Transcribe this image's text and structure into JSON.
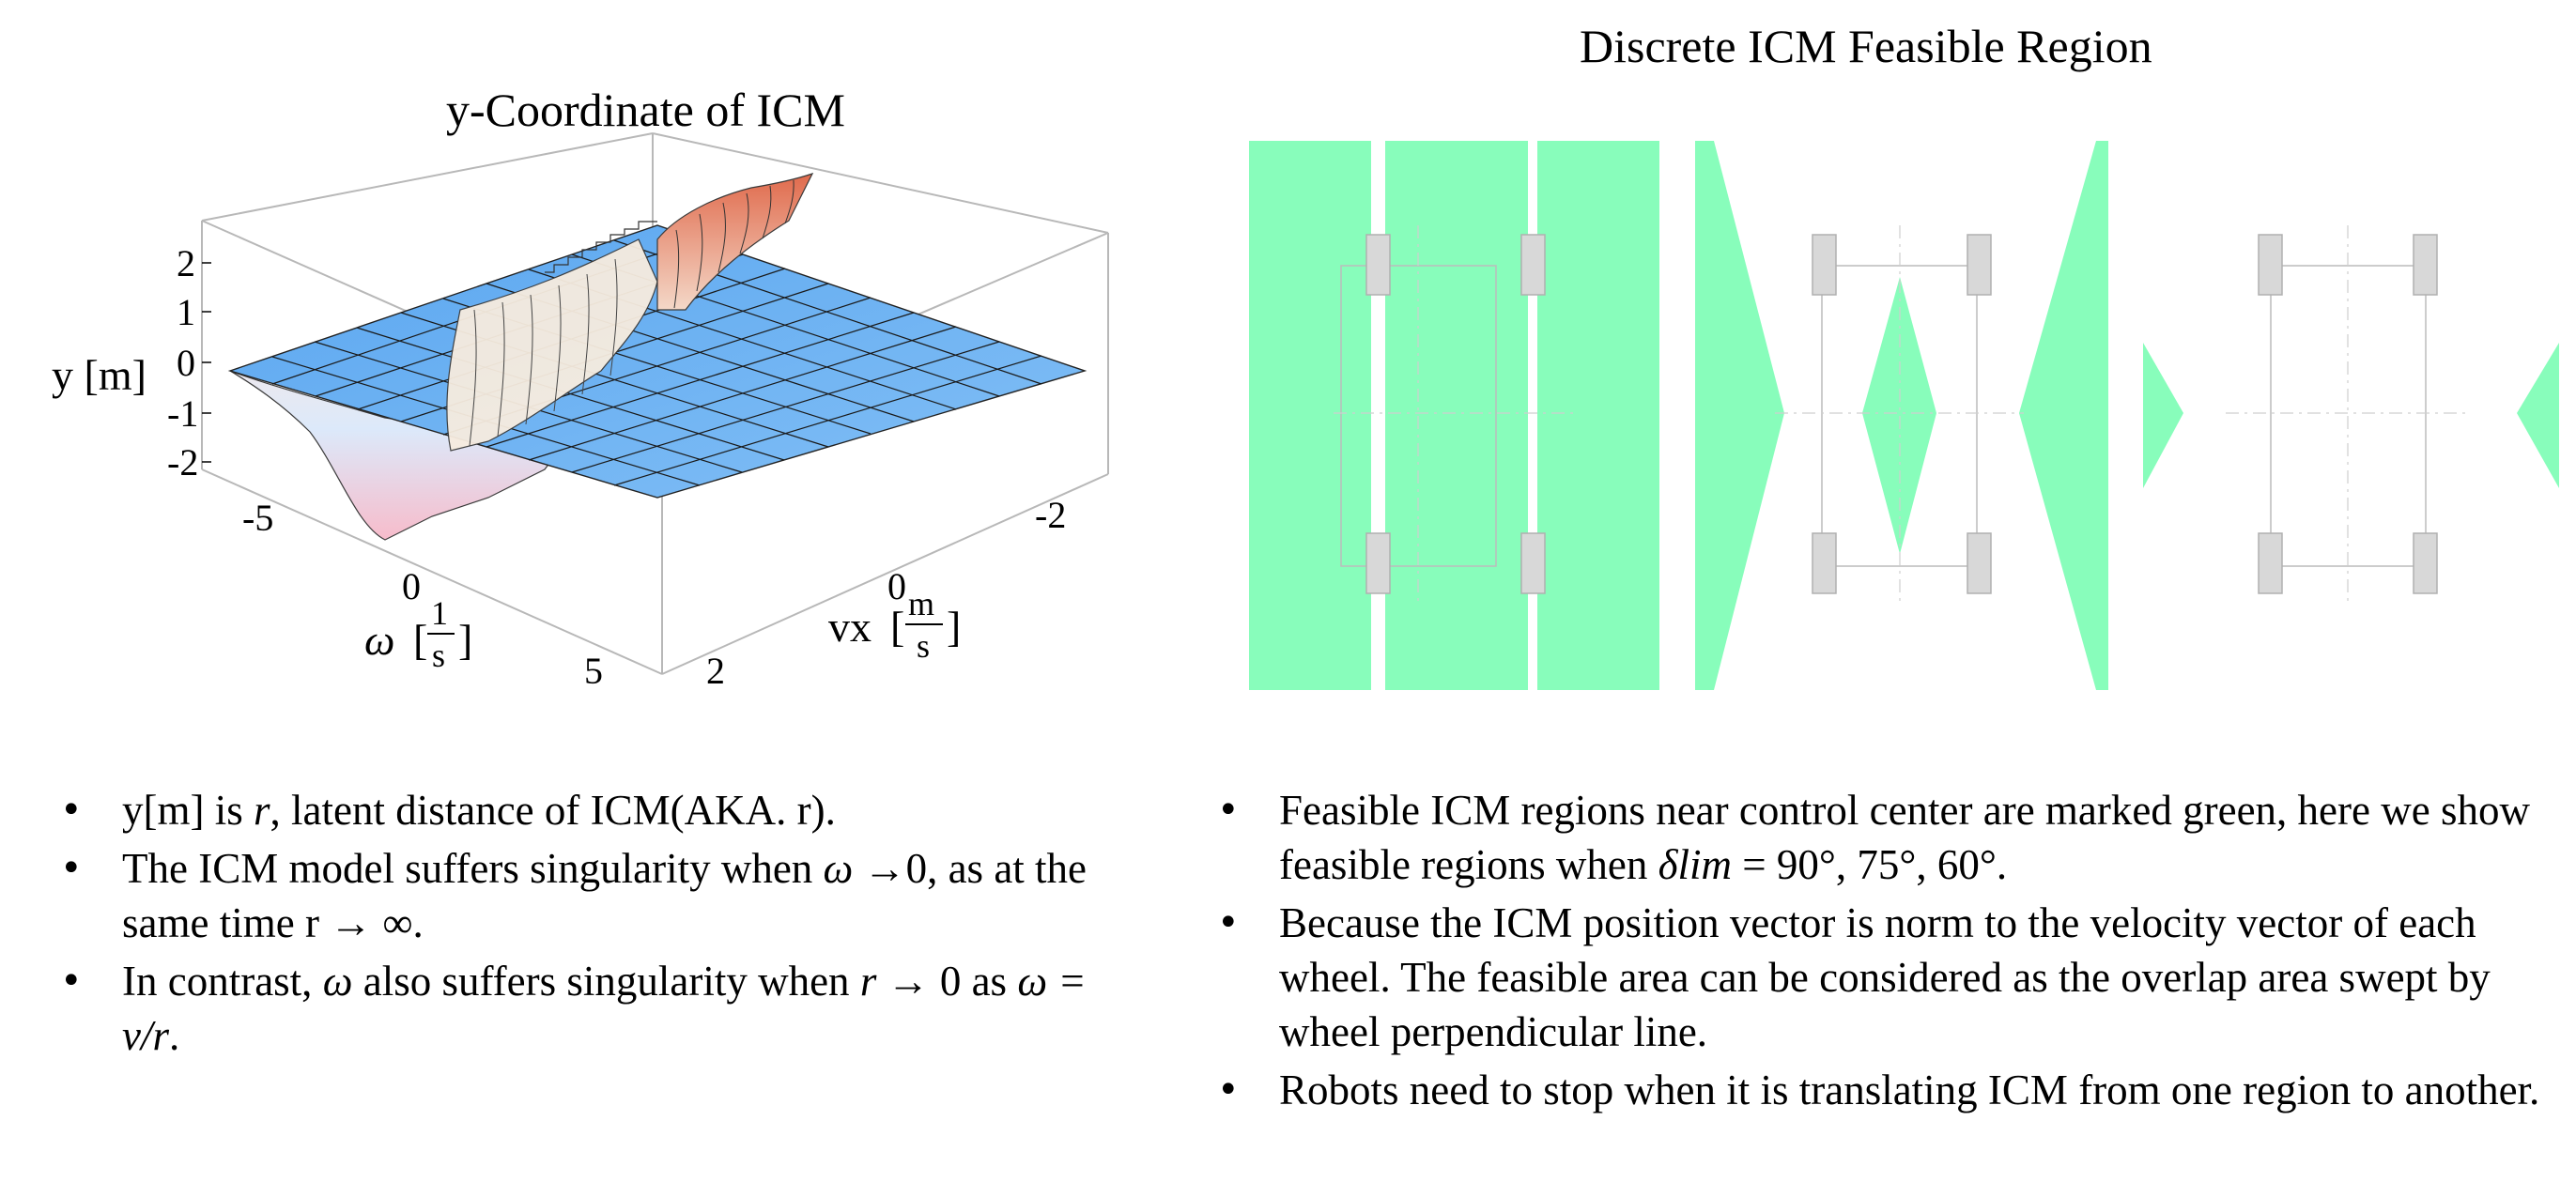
{
  "left_panel": {
    "title": "y-Coordinate of ICM",
    "z_label": "y [m]",
    "z_ticks": [
      "2",
      "1",
      "0",
      "-1",
      "-2"
    ],
    "omega_ticks": [
      "-5",
      "0",
      "5"
    ],
    "omega_label": "ω",
    "omega_unit_num": "1",
    "omega_unit_den": "s",
    "vx_ticks": [
      "-2",
      "0",
      "2"
    ],
    "vx_label": "vx",
    "vx_unit_num": "m",
    "vx_unit_den": "s"
  },
  "right_panel": {
    "title": "Discrete ICM Feasible Region"
  },
  "colors": {
    "feasible_green": "#88fdbb",
    "wheel_gray": "#d8d8d8",
    "surface_blue": "#6fb2f2",
    "surface_pink": "#f4b7c4",
    "surface_red": "#e88060"
  },
  "left_bullets": {
    "b1_a": "y[m] is ",
    "b1_var": "r",
    "b1_b": ", latent distance of ICM(AKA. r).",
    "b2_a": "The ICM model suffers singularity when ",
    "b2_var": "ω",
    "b2_b": " →0, as at the same time r → ∞.",
    "b3_a": "In contrast, ",
    "b3_var": "ω",
    "b3_b": " also suffers singularity when ",
    "b3_var2": "r",
    "b3_c": " → 0  as ",
    "b3_eq": "ω = v/r",
    "b3_d": "."
  },
  "right_bullets": {
    "b1_a": "Feasible ICM regions near control center are marked green, here we show feasible regions when ",
    "b1_var": "δlim",
    "b1_b": " = 90°, 75°, 60°.",
    "b2": "Because the ICM position vector is norm to the velocity vector of each wheel. The feasible area can be considered as the overlap area swept by wheel perpendicular line.",
    "b3": "Robots need to stop when it is translating ICM from one region to another."
  }
}
